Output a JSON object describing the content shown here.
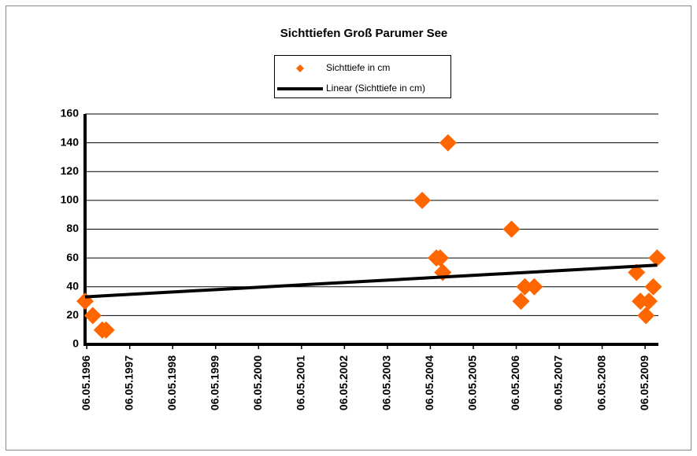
{
  "chart_data": {
    "type": "scatter",
    "title": "Sichttiefen Groß Parumer See",
    "series": [
      {
        "name": "Sichttiefe in cm",
        "color": "#ff6600",
        "mode": "markers",
        "x": [
          1996.3,
          1996.48,
          1996.7,
          1996.79,
          2004.15,
          2004.48,
          2004.57,
          2004.63,
          2004.75,
          2006.23,
          2006.45,
          2006.54,
          2006.76,
          2009.14,
          2009.23,
          2009.36,
          2009.43,
          2009.53,
          2009.62
        ],
        "values": [
          30,
          20,
          10,
          10,
          100,
          60,
          60,
          50,
          140,
          80,
          30,
          40,
          40,
          50,
          30,
          20,
          30,
          40,
          60
        ]
      },
      {
        "name": "Linear (Sichttiefe in cm)",
        "color": "#000000",
        "mode": "line",
        "x": [
          1996.3,
          2009.62
        ],
        "values": [
          33,
          55
        ]
      }
    ],
    "xlim": [
      1996.3,
      2009.65
    ],
    "xticks": [
      {
        "value": 1996.34,
        "label": "06.05.1996"
      },
      {
        "value": 1997.34,
        "label": "06.05.1997"
      },
      {
        "value": 1998.34,
        "label": "06.05.1998"
      },
      {
        "value": 1999.34,
        "label": "06.05.1999"
      },
      {
        "value": 2000.34,
        "label": "06.05.2000"
      },
      {
        "value": 2001.34,
        "label": "06.05.2001"
      },
      {
        "value": 2002.34,
        "label": "06.05.2002"
      },
      {
        "value": 2003.34,
        "label": "06.05.2003"
      },
      {
        "value": 2004.34,
        "label": "06.05.2004"
      },
      {
        "value": 2005.34,
        "label": "06.05.2005"
      },
      {
        "value": 2006.34,
        "label": "06.05.2006"
      },
      {
        "value": 2007.34,
        "label": "06.05.2007"
      },
      {
        "value": 2008.34,
        "label": "06.05.2008"
      },
      {
        "value": 2009.34,
        "label": "06.05.2009"
      }
    ],
    "ylim": [
      0,
      160
    ],
    "yticks": [
      0,
      20,
      40,
      60,
      80,
      100,
      120,
      140,
      160
    ],
    "grid": true
  }
}
